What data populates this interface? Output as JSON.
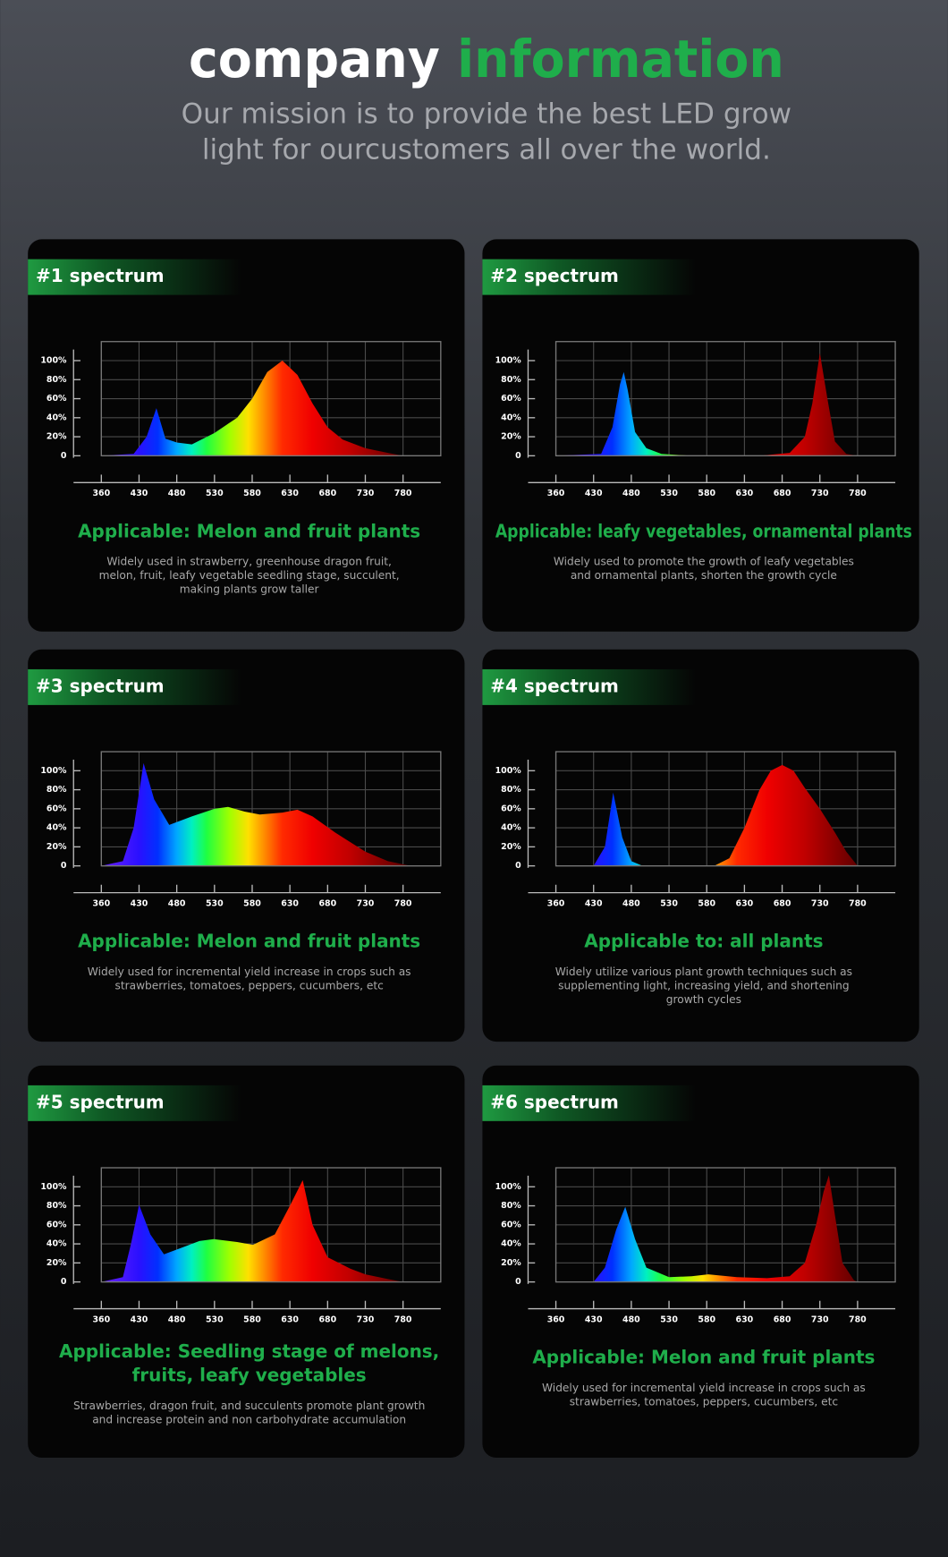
{
  "header": {
    "title": "company",
    "title_highlight": "information",
    "subtitle": [
      "Our mission is to provide the best LED grow",
      "light for ourcustomers all over the world."
    ]
  },
  "chart_data": [
    {
      "type": "area",
      "title": "#1 spectrum",
      "heading": [
        "Applicable: Melon and fruit plants"
      ],
      "description": [
        "Widely used in strawberry, greenhouse dragon fruit,",
        "melon, fruit, leafy vegetable seedling stage, succulent,",
        "making plants grow taller"
      ],
      "x": [
        360,
        420,
        440,
        453,
        465,
        480,
        500,
        530,
        560,
        580,
        600,
        620,
        640,
        660,
        680,
        700,
        730,
        760,
        780
      ],
      "values": [
        0,
        2,
        20,
        50,
        18,
        14,
        12,
        24,
        40,
        60,
        88,
        100,
        85,
        55,
        30,
        17,
        8,
        3,
        0
      ],
      "xlim": [
        360,
        830
      ],
      "xticks": [
        360,
        430,
        480,
        530,
        580,
        630,
        680,
        730,
        780
      ],
      "ylim": [
        0,
        120
      ],
      "yticks": [
        0,
        {
          "value": 20,
          "label": "20%"
        },
        {
          "value": 40,
          "label": "40%"
        },
        {
          "value": 60,
          "label": "60%"
        },
        {
          "value": 80,
          "label": "80%"
        },
        {
          "value": 100,
          "label": "100%"
        }
      ],
      "grid": true
    },
    {
      "type": "area",
      "title": "#2 spectrum",
      "heading": [
        "Applicable: leafy vegetables, ornamental plants"
      ],
      "description": [
        "Widely used to promote the growth of leafy vegetables",
        "and ornamental plants, shorten the growth cycle"
      ],
      "x": [
        360,
        440,
        455,
        465,
        470,
        475,
        485,
        500,
        520,
        560,
        650,
        690,
        710,
        720,
        730,
        740,
        750,
        765,
        780
      ],
      "values": [
        0,
        2,
        30,
        75,
        88,
        70,
        25,
        8,
        2,
        0,
        0,
        3,
        20,
        55,
        108,
        60,
        15,
        2,
        0
      ],
      "xlim": [
        360,
        830
      ],
      "xticks": [
        360,
        430,
        480,
        530,
        580,
        630,
        680,
        730,
        780
      ],
      "ylim": [
        0,
        120
      ],
      "yticks": [
        0,
        {
          "value": 20,
          "label": "20%"
        },
        {
          "value": 40,
          "label": "40%"
        },
        {
          "value": 60,
          "label": "60%"
        },
        {
          "value": 80,
          "label": "80%"
        },
        {
          "value": 100,
          "label": "100%"
        }
      ],
      "grid": true
    },
    {
      "type": "area",
      "title": "#3 spectrum",
      "heading": [
        "Applicable: Melon and fruit plants"
      ],
      "description": [
        "Widely used for incremental yield increase in crops such as",
        "strawberries, tomatoes, peppers, cucumbers, etc"
      ],
      "x": [
        360,
        400,
        420,
        436,
        450,
        470,
        500,
        530,
        548,
        570,
        590,
        620,
        640,
        660,
        690,
        730,
        760,
        790
      ],
      "values": [
        0,
        5,
        40,
        108,
        70,
        43,
        52,
        60,
        62,
        57,
        54,
        56,
        59,
        52,
        35,
        15,
        5,
        0
      ],
      "xlim": [
        360,
        830
      ],
      "xticks": [
        360,
        430,
        480,
        530,
        580,
        630,
        680,
        730,
        780
      ],
      "ylim": [
        0,
        120
      ],
      "yticks": [
        0,
        {
          "value": 20,
          "label": "20%"
        },
        {
          "value": 40,
          "label": "40%"
        },
        {
          "value": 60,
          "label": "60%"
        },
        {
          "value": 80,
          "label": "80%"
        },
        {
          "value": 100,
          "label": "100%"
        }
      ],
      "grid": true
    },
    {
      "type": "area",
      "title": "#4 spectrum",
      "heading": [
        "Applicable to: all plants"
      ],
      "description": [
        "Widely utilize various plant growth techniques such as",
        "supplementing light, increasing yield, and shortening",
        "growth cycles"
      ],
      "x": [
        360,
        430,
        445,
        456,
        468,
        480,
        495,
        590,
        610,
        630,
        650,
        665,
        680,
        695,
        710,
        730,
        750,
        765,
        780
      ],
      "values": [
        0,
        0,
        20,
        77,
        30,
        5,
        0,
        0,
        8,
        40,
        80,
        100,
        106,
        100,
        82,
        60,
        35,
        15,
        0
      ],
      "xlim": [
        360,
        830
      ],
      "xticks": [
        360,
        430,
        480,
        530,
        580,
        630,
        680,
        730,
        780
      ],
      "ylim": [
        0,
        120
      ],
      "yticks": [
        0,
        {
          "value": 20,
          "label": "20%"
        },
        {
          "value": 40,
          "label": "40%"
        },
        {
          "value": 60,
          "label": "60%"
        },
        {
          "value": 80,
          "label": "80%"
        },
        {
          "value": 100,
          "label": "100%"
        }
      ],
      "grid": true
    },
    {
      "type": "area",
      "title": "#5 spectrum",
      "heading": [
        "Applicable: Seedling stage of melons,",
        "fruits, leafy vegetables"
      ],
      "description": [
        "Strawberries, dragon fruit, and succulents promote plant growth",
        "and increase protein and non carbohydrate accumulation"
      ],
      "x": [
        360,
        400,
        415,
        430,
        445,
        463,
        490,
        510,
        529,
        560,
        581,
        610,
        630,
        647,
        660,
        680,
        710,
        730,
        760,
        780
      ],
      "values": [
        0,
        5,
        40,
        81,
        50,
        29,
        37,
        43,
        45,
        42,
        39,
        50,
        80,
        107,
        60,
        26,
        14,
        8,
        3,
        0
      ],
      "xlim": [
        360,
        830
      ],
      "xticks": [
        360,
        430,
        480,
        530,
        580,
        630,
        680,
        730,
        780
      ],
      "ylim": [
        0,
        120
      ],
      "yticks": [
        0,
        {
          "value": 20,
          "label": "20%"
        },
        {
          "value": 40,
          "label": "40%"
        },
        {
          "value": 60,
          "label": "60%"
        },
        {
          "value": 80,
          "label": "80%"
        },
        {
          "value": 100,
          "label": "100%"
        }
      ],
      "grid": true
    },
    {
      "type": "area",
      "title": "#6 spectrum",
      "heading": [
        "Applicable: Melon and fruit plants"
      ],
      "description": [
        "Widely used for incremental yield increase in crops such as",
        "strawberries, tomatoes, peppers, cucumbers, etc"
      ],
      "x": [
        360,
        430,
        445,
        460,
        472,
        485,
        500,
        530,
        560,
        582,
        620,
        660,
        690,
        710,
        725,
        735,
        742,
        750,
        760,
        775,
        780
      ],
      "values": [
        0,
        0,
        15,
        55,
        79,
        45,
        15,
        5,
        6,
        8,
        5,
        4,
        6,
        20,
        60,
        95,
        112,
        70,
        20,
        2,
        0
      ],
      "xlim": [
        360,
        830
      ],
      "xticks": [
        360,
        430,
        480,
        530,
        580,
        630,
        680,
        730,
        780
      ],
      "ylim": [
        0,
        120
      ],
      "yticks": [
        0,
        {
          "value": 20,
          "label": "20%"
        },
        {
          "value": 40,
          "label": "40%"
        },
        {
          "value": 60,
          "label": "60%"
        },
        {
          "value": 80,
          "label": "80%"
        },
        {
          "value": 100,
          "label": "100%"
        }
      ],
      "grid": true
    }
  ]
}
